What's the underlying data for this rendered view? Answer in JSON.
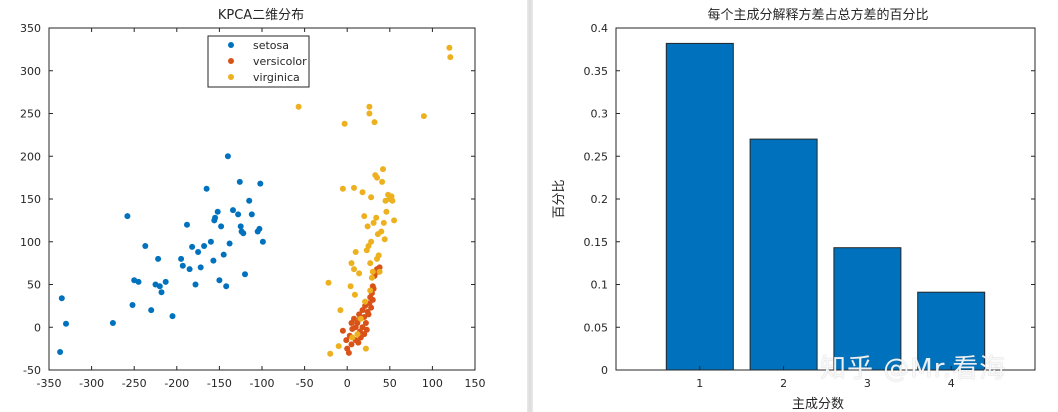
{
  "watermark": "知乎 @Mr.看海",
  "colors": {
    "setosa": "#0072BD",
    "versicolor": "#D95319",
    "virginica": "#EDB120",
    "bar": "#0072BD",
    "axis": "#262626"
  },
  "chart_data": [
    {
      "type": "scatter",
      "title": "KPCA二维分布",
      "xlabel": "",
      "ylabel": "",
      "xlim": [
        -350,
        150
      ],
      "ylim": [
        -50,
        350
      ],
      "xticks": [
        -350,
        -300,
        -250,
        -200,
        -150,
        -100,
        -50,
        0,
        50,
        100,
        150
      ],
      "yticks": [
        -50,
        0,
        50,
        100,
        150,
        200,
        250,
        300,
        350
      ],
      "legend_position": "top-center",
      "series": [
        {
          "name": "setosa",
          "points": [
            [
              -335,
              34
            ],
            [
              -330,
              4
            ],
            [
              -337,
              -29
            ],
            [
              -275,
              5
            ],
            [
              -258,
              130
            ],
            [
              -250,
              55
            ],
            [
              -245,
              53
            ],
            [
              -252,
              26
            ],
            [
              -237,
              95
            ],
            [
              -230,
              20
            ],
            [
              -222,
              80
            ],
            [
              -218,
              41
            ],
            [
              -220,
              48
            ],
            [
              -213,
              53
            ],
            [
              -225,
              50
            ],
            [
              -205,
              13
            ],
            [
              -195,
              80
            ],
            [
              -193,
              72
            ],
            [
              -188,
              120
            ],
            [
              -185,
              68
            ],
            [
              -182,
              94
            ],
            [
              -178,
              50
            ],
            [
              -175,
              88
            ],
            [
              -172,
              70
            ],
            [
              -168,
              95
            ],
            [
              -165,
              162
            ],
            [
              -160,
              100
            ],
            [
              -157,
              78
            ],
            [
              -156,
              125
            ],
            [
              -155,
              128
            ],
            [
              -152,
              135
            ],
            [
              -148,
              118
            ],
            [
              -150,
              55
            ],
            [
              -145,
              85
            ],
            [
              -140,
              200
            ],
            [
              -142,
              48
            ],
            [
              -138,
              98
            ],
            [
              -134,
              137
            ],
            [
              -128,
              132
            ],
            [
              -126,
              170
            ],
            [
              -125,
              118
            ],
            [
              -124,
              112
            ],
            [
              -122,
              110
            ],
            [
              -120,
              62
            ],
            [
              -115,
              148
            ],
            [
              -112,
              132
            ],
            [
              -105,
              112
            ],
            [
              -103,
              115
            ],
            [
              -102,
              168
            ],
            [
              -99,
              100
            ]
          ]
        },
        {
          "name": "versicolor",
          "points": [
            [
              -5,
              -4
            ],
            [
              -1,
              -15
            ],
            [
              0,
              -25
            ],
            [
              2,
              -30
            ],
            [
              3,
              -10
            ],
            [
              5,
              5
            ],
            [
              5,
              -20
            ],
            [
              6,
              -2
            ],
            [
              8,
              10
            ],
            [
              10,
              -15
            ],
            [
              10,
              0
            ],
            [
              12,
              5
            ],
            [
              13,
              -18
            ],
            [
              14,
              15
            ],
            [
              15,
              -5
            ],
            [
              15,
              10
            ],
            [
              16,
              -12
            ],
            [
              18,
              20
            ],
            [
              18,
              0
            ],
            [
              20,
              -8
            ],
            [
              20,
              12
            ],
            [
              21,
              25
            ],
            [
              22,
              5
            ],
            [
              23,
              -3
            ],
            [
              24,
              18
            ],
            [
              25,
              15
            ],
            [
              26,
              28
            ],
            [
              27,
              35
            ],
            [
              28,
              23
            ],
            [
              29,
              40
            ],
            [
              30,
              32
            ],
            [
              30,
              48
            ],
            [
              31,
              45
            ],
            [
              32,
              60
            ],
            [
              35,
              68
            ],
            [
              36,
              65
            ],
            [
              38,
              70
            ]
          ]
        },
        {
          "name": "virginica",
          "points": [
            [
              -57,
              258
            ],
            [
              -22,
              52
            ],
            [
              -20,
              -31
            ],
            [
              -10,
              -22
            ],
            [
              -8,
              20
            ],
            [
              -5,
              162
            ],
            [
              -3,
              238
            ],
            [
              4,
              48
            ],
            [
              5,
              75
            ],
            [
              6,
              -12
            ],
            [
              8,
              68
            ],
            [
              8,
              163
            ],
            [
              9,
              38
            ],
            [
              10,
              88
            ],
            [
              12,
              -8
            ],
            [
              14,
              63
            ],
            [
              16,
              10
            ],
            [
              18,
              158
            ],
            [
              20,
              130
            ],
            [
              21,
              30
            ],
            [
              22,
              -25
            ],
            [
              23,
              90
            ],
            [
              24,
              118
            ],
            [
              25,
              95
            ],
            [
              26,
              250
            ],
            [
              26,
              258
            ],
            [
              27,
              43
            ],
            [
              27,
              75
            ],
            [
              28,
              100
            ],
            [
              28,
              152
            ],
            [
              29,
              58
            ],
            [
              30,
              65
            ],
            [
              31,
              122
            ],
            [
              32,
              240
            ],
            [
              33,
              178
            ],
            [
              34,
              128
            ],
            [
              35,
              175
            ],
            [
              35,
              80
            ],
            [
              36,
              109
            ],
            [
              37,
              84
            ],
            [
              38,
              65
            ],
            [
              40,
              112
            ],
            [
              41,
              170
            ],
            [
              42,
              185
            ],
            [
              43,
              122
            ],
            [
              44,
              103
            ],
            [
              45,
              148
            ],
            [
              46,
              135
            ],
            [
              48,
              155
            ],
            [
              50,
              150
            ],
            [
              52,
              153
            ],
            [
              53,
              148
            ],
            [
              55,
              125
            ],
            [
              90,
              247
            ],
            [
              120,
              327
            ],
            [
              121,
              316
            ]
          ]
        }
      ]
    },
    {
      "type": "bar",
      "title": "每个主成分解释方差占总方差的百分比",
      "xlabel": "主成分数",
      "ylabel": "百分比",
      "categories": [
        "1",
        "2",
        "3",
        "4"
      ],
      "values": [
        0.382,
        0.27,
        0.143,
        0.091
      ],
      "xlim": [
        0,
        5
      ],
      "ylim": [
        0,
        0.4
      ],
      "yticks": [
        "0",
        "0.05",
        "0.1",
        "0.15",
        "0.2",
        "0.25",
        "0.3",
        "0.35",
        "0.4"
      ]
    }
  ]
}
